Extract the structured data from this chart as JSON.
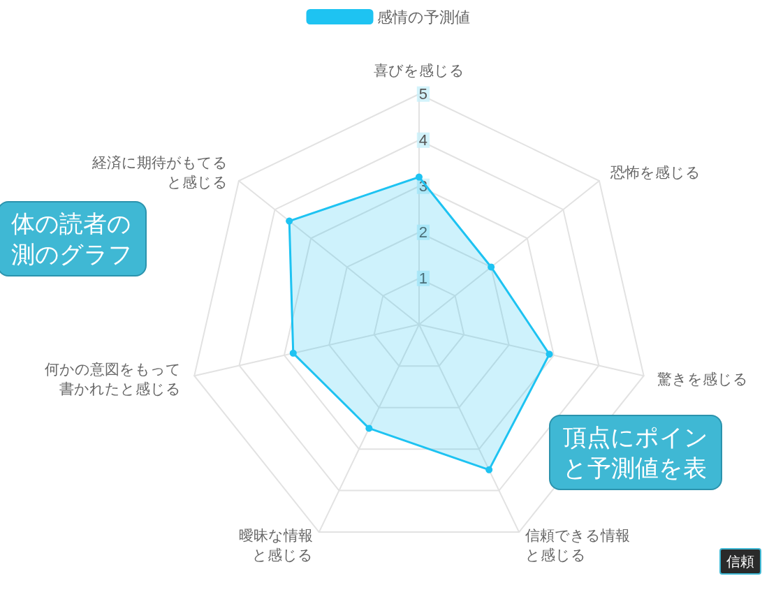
{
  "chart_data": {
    "type": "radar",
    "categories": [
      "喜びを感じる",
      "恐怖を感じる",
      "驚きを感じる",
      "信頼できる情報と感じる",
      "曖昧な情報と感じる",
      "何かの意図をもって書かれたと感じる",
      "経済に期待がもてると感じる"
    ],
    "series": [
      {
        "name": "感情の予測値",
        "color": "#1ec3f2",
        "values": [
          3.2,
          2.0,
          2.9,
          3.5,
          2.5,
          2.8,
          3.6
        ]
      }
    ],
    "ylim": [
      0,
      5
    ],
    "yticks": [
      1,
      2,
      3,
      4,
      5
    ],
    "legend": "top",
    "marker": "circle",
    "annotations": [
      "体の読者の測のグラフ",
      "頂点にポインと予測値を表",
      "信頼"
    ]
  }
}
